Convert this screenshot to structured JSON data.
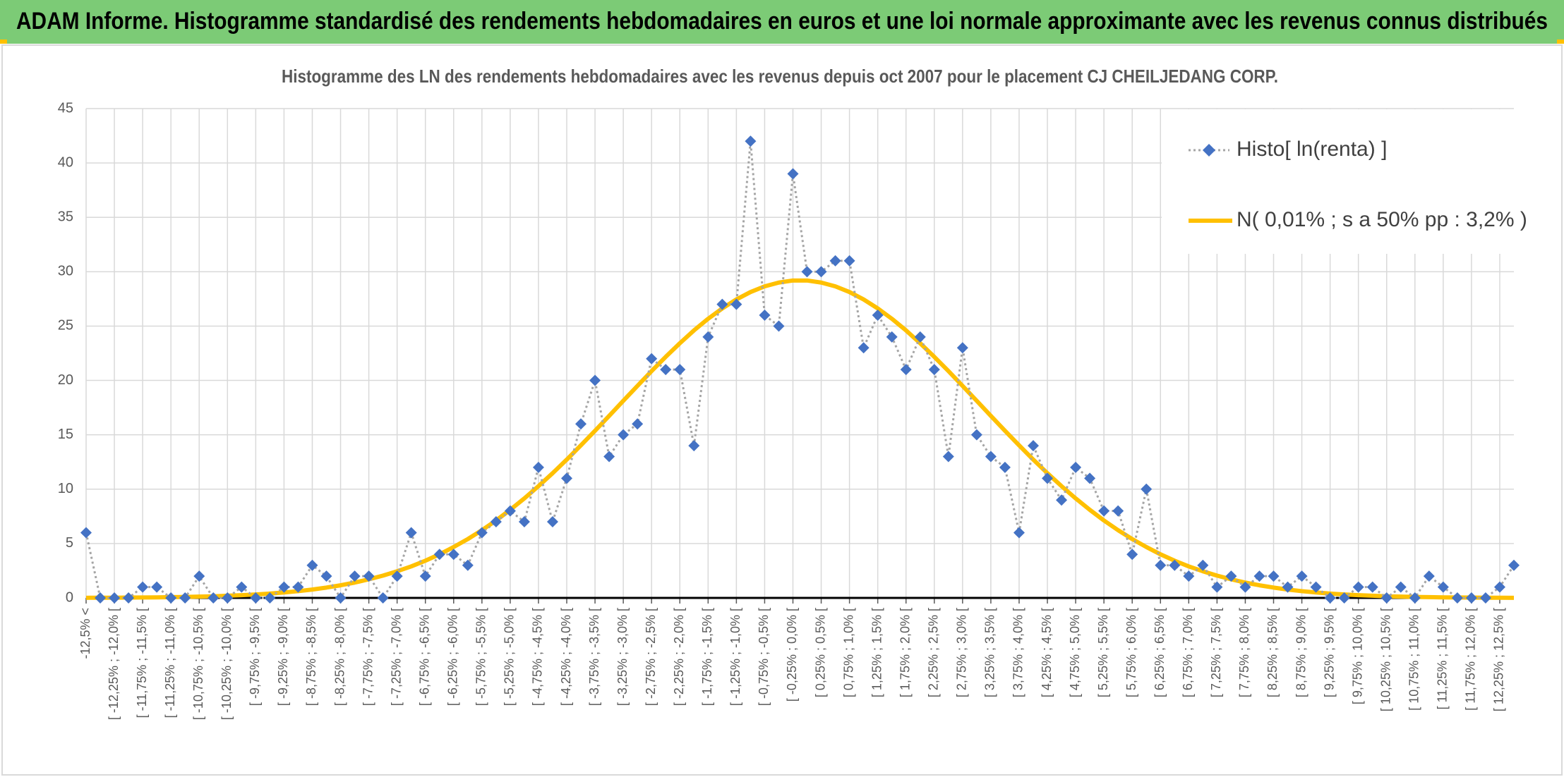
{
  "page_title": "ADAM Informe. Histogramme standardisé des rendements hebdomadaires en euros et une loi normale approximante avec les revenus connus distribués",
  "chart_data": {
    "type": "line",
    "title": "Histogramme des LN des rendements hebdomadaires avec les revenus depuis oct 2007 pour le placement CJ CHEILJEDANG CORP.",
    "categories": [
      "-12,5% <",
      null,
      "[ -12,25% ; -12,0% [",
      null,
      "[ -11,75% ; -11,5% [",
      null,
      "[ -11,25% ; -11,0% [",
      null,
      "[ -10,75% ; -10,5% [",
      null,
      "[ -10,25% ; -10,0% [",
      null,
      "[ -9,75% ; -9,5% [",
      null,
      "[ -9,25% ; -9,0% [",
      null,
      "[ -8,75% ; -8,5% [",
      null,
      "[ -8,25% ; -8,0% [",
      null,
      "[ -7,75% ; -7,5% [",
      null,
      "[ -7,25% ; -7,0% [",
      null,
      "[ -6,75% ; -6,5% [",
      null,
      "[ -6,25% ; -6,0% [",
      null,
      "[ -5,75% ; -5,5% [",
      null,
      "[ -5,25% ; -5,0% [",
      null,
      "[ -4,75% ; -4,5% [",
      null,
      "[ -4,25% ; -4,0% [",
      null,
      "[ -3,75% ; -3,5% [",
      null,
      "[ -3,25% ; -3,0% [",
      null,
      "[ -2,75% ; -2,5% [",
      null,
      "[ -2,25% ; -2,0% [",
      null,
      "[ -1,75% ; -1,5% [",
      null,
      "[ -1,25% ; -1,0% [",
      null,
      "[ -0,75% ; -0,5% [",
      null,
      "[ -0,25% ; 0,0% [",
      null,
      "[ 0,25% ; 0,5% [",
      null,
      "[ 0,75% ; 1,0% [",
      null,
      "[ 1,25% ; 1,5% [",
      null,
      "[ 1,75% ; 2,0% [",
      null,
      "[ 2,25% ; 2,5% [",
      null,
      "[ 2,75% ; 3,0% [",
      null,
      "[ 3,25% ; 3,5% [",
      null,
      "[ 3,75% ; 4,0% [",
      null,
      "[ 4,25% ; 4,5% [",
      null,
      "[ 4,75% ; 5,0% [",
      null,
      "[ 5,25% ; 5,5% [",
      null,
      "[ 5,75% ; 6,0% [",
      null,
      "[ 6,25% ; 6,5% [",
      null,
      "[ 6,75% ; 7,0% [",
      null,
      "[ 7,25% ; 7,5% [",
      null,
      "[ 7,75% ; 8,0% [",
      null,
      "[ 8,25% ; 8,5% [",
      null,
      "[ 8,75% ; 9,0% [",
      null,
      "[ 9,25% ; 9,5% [",
      null,
      "[ 9,75% ; 10,0% [",
      null,
      "[ 10,25% ; 10,5% [",
      null,
      "[ 10,75% ; 11,0% [",
      null,
      "[ 11,25% ; 11,5% [",
      null,
      "[ 11,75% ; 12,0% [",
      null,
      "[ 12,25% ; 12,5% [",
      null
    ],
    "series": [
      {
        "name": "Histo[ ln(renta) ]",
        "color": "#4472c4",
        "line_color": "#a5a5a5",
        "marker": "diamond",
        "values": [
          6,
          0,
          0,
          0,
          1,
          1,
          0,
          0,
          2,
          0,
          0,
          1,
          0,
          0,
          1,
          1,
          3,
          2,
          0,
          2,
          2,
          0,
          2,
          6,
          2,
          4,
          4,
          3,
          6,
          7,
          8,
          7,
          12,
          7,
          11,
          16,
          20,
          13,
          15,
          16,
          22,
          21,
          21,
          14,
          24,
          27,
          27,
          42,
          26,
          25,
          39,
          30,
          30,
          31,
          31,
          23,
          26,
          24,
          21,
          24,
          21,
          13,
          23,
          15,
          13,
          12,
          6,
          14,
          11,
          9,
          12,
          11,
          8,
          8,
          4,
          10,
          3,
          3,
          2,
          3,
          1,
          2,
          1,
          2,
          2,
          1,
          2,
          1,
          0,
          0,
          1,
          1,
          0,
          1,
          0,
          2,
          1,
          0,
          0,
          0,
          1,
          3
        ]
      },
      {
        "name": "N( 0,01% ; s a 50% pp : 3,2% )",
        "color": "#ffc000",
        "values": [
          0.01,
          0.02,
          0.02,
          0.03,
          0.04,
          0.05,
          0.07,
          0.09,
          0.12,
          0.15,
          0.2,
          0.25,
          0.32,
          0.4,
          0.5,
          0.62,
          0.77,
          0.95,
          1.16,
          1.41,
          1.71,
          2.05,
          2.45,
          2.9,
          3.42,
          4.01,
          4.68,
          5.41,
          6.23,
          7.12,
          8.1,
          9.15,
          10.28,
          11.47,
          12.72,
          14.03,
          15.37,
          16.74,
          18.13,
          19.5,
          20.86,
          22.17,
          23.42,
          24.6,
          25.67,
          26.62,
          27.45,
          28.13,
          28.65,
          29.0,
          29.19,
          29.19,
          29.0,
          28.65,
          28.13,
          27.45,
          26.62,
          25.67,
          24.6,
          23.42,
          22.17,
          20.86,
          19.5,
          18.13,
          16.74,
          15.37,
          14.03,
          12.72,
          11.47,
          10.28,
          9.15,
          8.1,
          7.12,
          6.23,
          5.41,
          4.68,
          4.01,
          3.42,
          2.9,
          2.45,
          2.05,
          1.71,
          1.41,
          1.16,
          0.95,
          0.77,
          0.62,
          0.5,
          0.4,
          0.32,
          0.25,
          0.2,
          0.15,
          0.12,
          0.09,
          0.07,
          0.05,
          0.04,
          0.03,
          0.02,
          0.02,
          0.01
        ]
      }
    ],
    "ylim": [
      0,
      45
    ],
    "yticks": [
      0,
      5,
      10,
      15,
      20,
      25,
      30,
      35,
      40,
      45
    ],
    "grid": true,
    "legend": "top-right"
  }
}
